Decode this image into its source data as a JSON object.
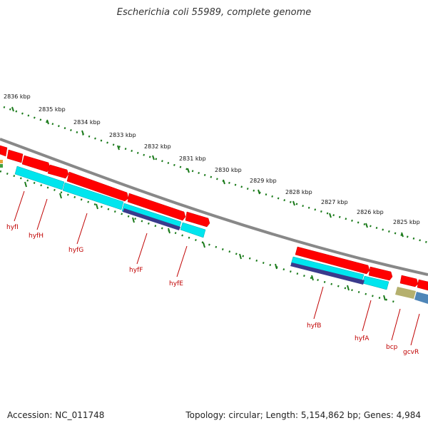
{
  "header": {
    "title": "Escherichia coli 55989, complete genome"
  },
  "footer": {
    "accession": "Accession: NC_011748",
    "summary": "Topology: circular; Length: 5,154,862 bp; Genes: 4,984"
  },
  "map": {
    "kbp_labels": [
      "2836 kbp",
      "2835 kbp",
      "2834 kbp",
      "2833 kbp",
      "2832 kbp",
      "2831 kbp",
      "2830 kbp",
      "2829 kbp",
      "2828 kbp",
      "2827 kbp",
      "2826 kbp",
      "2825 kbp"
    ],
    "gene_labels": [
      "hyfI",
      "hyfH",
      "hyfG",
      "hyfF",
      "hyfE",
      "hyfB",
      "hyfA",
      "bcp",
      "gcvR"
    ],
    "colors": {
      "cds": "#ff0000",
      "cds_highlight": "#ff8080",
      "rna": "#00e5ee",
      "alt_feature": "#3a3a8c",
      "backbone": "#888888",
      "ticks": "#1a7a1a",
      "gene_label": "#c00000"
    }
  }
}
